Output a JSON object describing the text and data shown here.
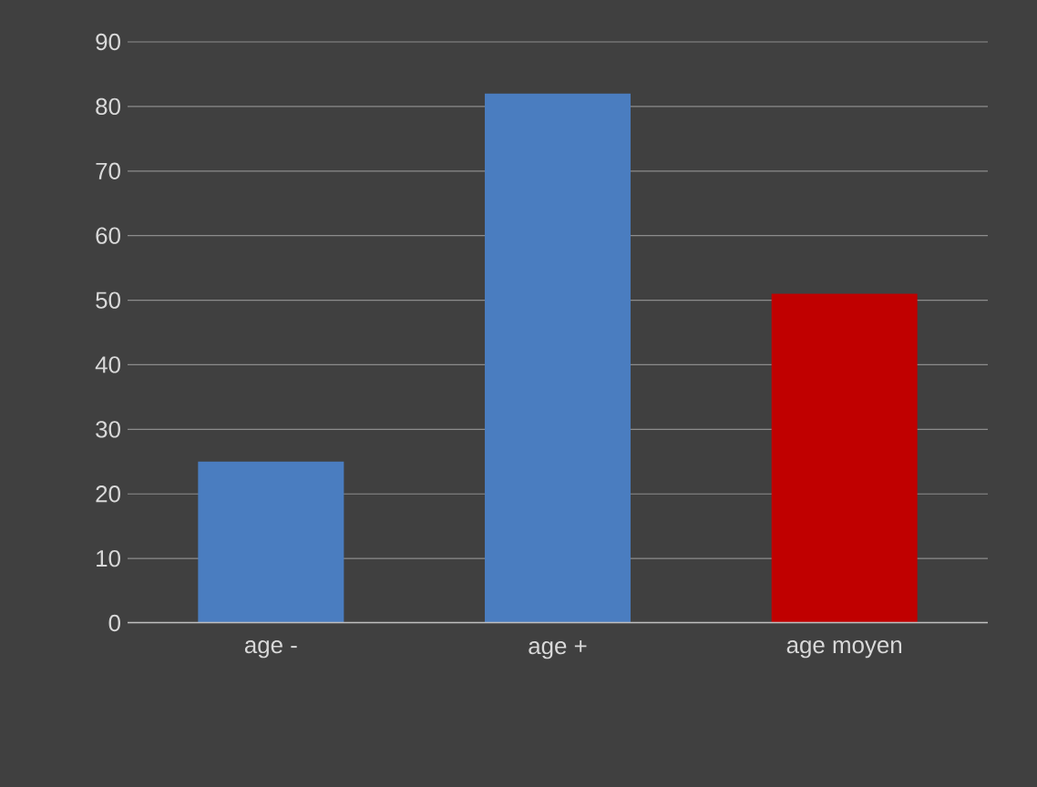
{
  "chart_data": {
    "type": "bar",
    "categories": [
      "age -",
      "age +",
      "age moyen"
    ],
    "values": [
      25,
      82,
      51
    ],
    "colors": [
      "#4a7dc0",
      "#4a7dc0",
      "#c00000"
    ],
    "ylim": [
      0,
      90
    ],
    "yticks": [
      0,
      10,
      20,
      30,
      40,
      50,
      60,
      70,
      80,
      90
    ],
    "grid": "y"
  }
}
